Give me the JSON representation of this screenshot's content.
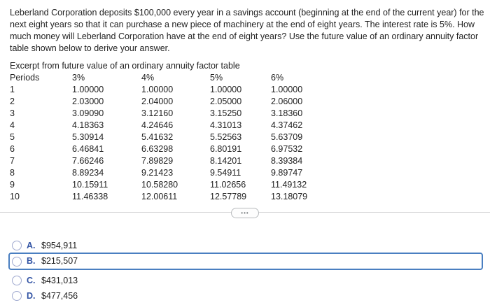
{
  "question": {
    "text": "Leberland Corporation deposits $100,000 every year in a savings account (beginning at the end of the current year) for the next eight years so that it can purchase a new piece of machinery at the end of eight years. The interest rate is 5%. How much money will Leberland Corporation have at the end of eight years? Use the future value of an ordinary annuity factor table shown below to derive your answer."
  },
  "table": {
    "caption": "Excerpt from future value of an ordinary annuity factor table",
    "columns": [
      "Periods",
      "3%",
      "4%",
      "5%",
      "6%"
    ],
    "rows": [
      [
        "1",
        "1.00000",
        "1.00000",
        "1.00000",
        "1.00000"
      ],
      [
        "2",
        "2.03000",
        "2.04000",
        "2.05000",
        "2.06000"
      ],
      [
        "3",
        "3.09090",
        "3.12160",
        "3.15250",
        "3.18360"
      ],
      [
        "4",
        "4.18363",
        "4.24646",
        "4.31013",
        "4.37462"
      ],
      [
        "5",
        "5.30914",
        "5.41632",
        "5.52563",
        "5.63709"
      ],
      [
        "6",
        "6.46841",
        "6.63298",
        "6.80191",
        "6.97532"
      ],
      [
        "7",
        "7.66246",
        "7.89829",
        "8.14201",
        "8.39384"
      ],
      [
        "8",
        "8.89234",
        "9.21423",
        "9.54911",
        "9.89747"
      ],
      [
        "9",
        "10.15911",
        "10.58280",
        "11.02656",
        "11.49132"
      ],
      [
        "10",
        "11.46338",
        "12.00611",
        "12.57789",
        "13.18079"
      ]
    ]
  },
  "divider": {
    "expand_icon": "•••"
  },
  "options": [
    {
      "letter": "A.",
      "value": "$954,911"
    },
    {
      "letter": "B.",
      "value": "$215,507"
    },
    {
      "letter": "C.",
      "value": "$431,013"
    },
    {
      "letter": "D.",
      "value": "$477,456"
    }
  ],
  "colors": {
    "option_letter": "#3254a4",
    "focus_border": "#4a7fc1",
    "radio_ring": "#9fa9cf",
    "divider_line": "#d5d5d6"
  }
}
